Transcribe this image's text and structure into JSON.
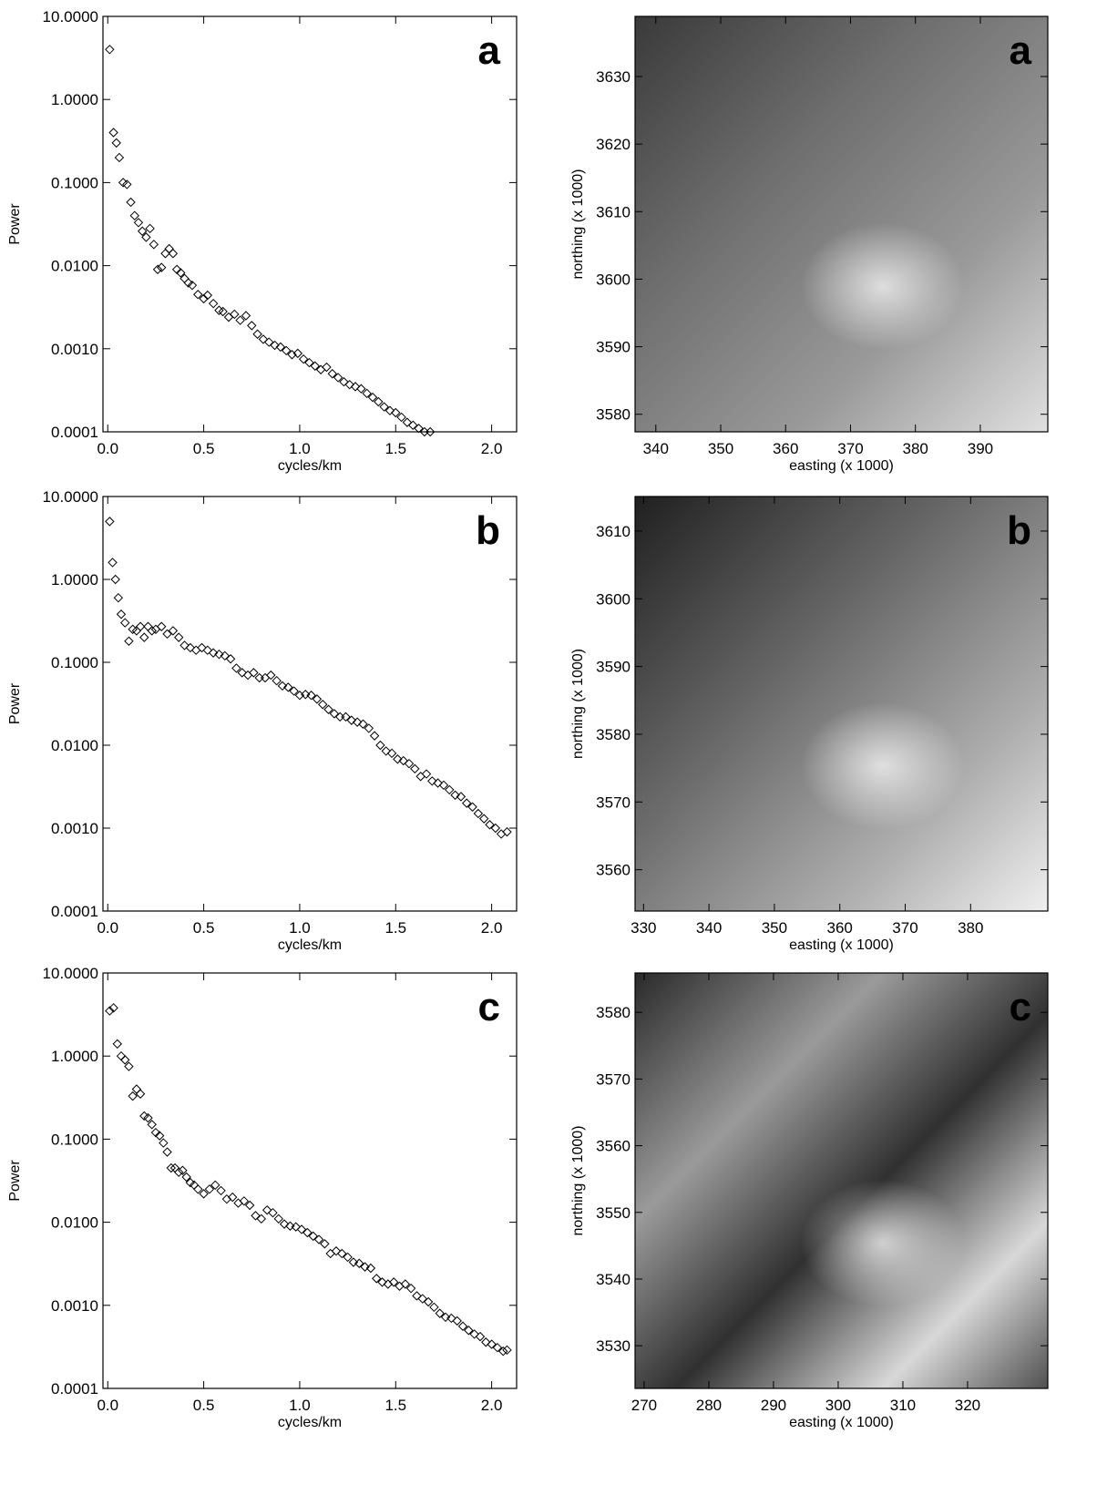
{
  "chart_data": [
    {
      "type": "scatter",
      "label": "a",
      "xlabel": "cycles/km",
      "ylabel": "Power",
      "yscale": "log",
      "color": "#000000",
      "xlim": [
        -0.025,
        2.13
      ],
      "ylim": [
        0.0001,
        10
      ],
      "xticks": [
        {
          "value": 0,
          "label": "0.0"
        },
        0.5,
        {
          "value": 1,
          "label": "1.0"
        },
        1.5,
        {
          "value": 2,
          "label": "2.0"
        }
      ],
      "yticks": [
        {
          "value": 0.0001,
          "label": "0.0001"
        },
        {
          "value": 0.001,
          "label": "0.0010"
        },
        {
          "value": 0.01,
          "label": "0.0100"
        },
        {
          "value": 0.1,
          "label": "0.1000"
        },
        {
          "value": 1,
          "label": "1.0000"
        },
        {
          "value": 10,
          "label": "10.0000"
        }
      ],
      "x": [
        0.01,
        0.03,
        0.045,
        0.06,
        0.08,
        0.1,
        0.12,
        0.14,
        0.16,
        0.18,
        0.2,
        0.22,
        0.24,
        0.26,
        0.28,
        0.3,
        0.32,
        0.34,
        0.36,
        0.38,
        0.4,
        0.42,
        0.44,
        0.47,
        0.5,
        0.52,
        0.55,
        0.58,
        0.6,
        0.63,
        0.66,
        0.69,
        0.72,
        0.75,
        0.78,
        0.81,
        0.84,
        0.87,
        0.9,
        0.93,
        0.96,
        0.99,
        1.02,
        1.05,
        1.08,
        1.11,
        1.14,
        1.17,
        1.2,
        1.23,
        1.26,
        1.29,
        1.32,
        1.35,
        1.38,
        1.41,
        1.44,
        1.47,
        1.5,
        1.53,
        1.56,
        1.59,
        1.62,
        1.65,
        1.68
      ],
      "values": [
        4.0,
        0.4,
        0.3,
        0.2,
        0.1,
        0.095,
        0.058,
        0.04,
        0.033,
        0.026,
        0.022,
        0.028,
        0.018,
        0.009,
        0.0095,
        0.014,
        0.016,
        0.014,
        0.009,
        0.0082,
        0.007,
        0.0062,
        0.0058,
        0.0045,
        0.004,
        0.0044,
        0.0035,
        0.0029,
        0.0028,
        0.0024,
        0.0026,
        0.0022,
        0.0025,
        0.0019,
        0.0015,
        0.0013,
        0.0012,
        0.0011,
        0.00105,
        0.00095,
        0.00085,
        0.00088,
        0.00075,
        0.00068,
        0.00062,
        0.00056,
        0.0006,
        0.0005,
        0.00045,
        0.0004,
        0.00037,
        0.00035,
        0.00033,
        0.00029,
        0.00026,
        0.00023,
        0.0002,
        0.00018,
        0.00017,
        0.00015,
        0.00013,
        0.00012,
        0.00011,
        0.0001,
        0.0001
      ]
    },
    {
      "type": "image",
      "label": "a",
      "xlabel": "easting (x 1000)",
      "ylabel": "northing (x 1000)",
      "xlim": [
        336.8,
        400.4
      ],
      "ylim": [
        3577.4,
        3638.9
      ],
      "xticks": [
        340,
        350,
        360,
        370,
        380,
        390
      ],
      "yticks": [
        3580,
        3590,
        3600,
        3610,
        3620,
        3630
      ]
    },
    {
      "type": "scatter",
      "label": "b",
      "xlabel": "cycles/km",
      "ylabel": "Power",
      "yscale": "log",
      "color": "#000000",
      "xlim": [
        -0.025,
        2.13
      ],
      "ylim": [
        0.0001,
        10
      ],
      "xticks": [
        {
          "value": 0,
          "label": "0.0"
        },
        0.5,
        {
          "value": 1,
          "label": "1.0"
        },
        1.5,
        {
          "value": 2,
          "label": "2.0"
        }
      ],
      "yticks": [
        {
          "value": 0.0001,
          "label": "0.0001"
        },
        {
          "value": 0.001,
          "label": "0.0010"
        },
        {
          "value": 0.01,
          "label": "0.0100"
        },
        {
          "value": 0.1,
          "label": "0.1000"
        },
        {
          "value": 1,
          "label": "1.0000"
        },
        {
          "value": 10,
          "label": "10.0000"
        }
      ],
      "x": [
        0.01,
        0.025,
        0.04,
        0.055,
        0.07,
        0.09,
        0.11,
        0.13,
        0.15,
        0.17,
        0.19,
        0.21,
        0.23,
        0.25,
        0.28,
        0.31,
        0.34,
        0.37,
        0.4,
        0.43,
        0.46,
        0.49,
        0.52,
        0.55,
        0.58,
        0.61,
        0.64,
        0.67,
        0.7,
        0.73,
        0.76,
        0.79,
        0.82,
        0.85,
        0.88,
        0.91,
        0.94,
        0.97,
        1.0,
        1.03,
        1.06,
        1.09,
        1.12,
        1.15,
        1.18,
        1.21,
        1.24,
        1.27,
        1.3,
        1.33,
        1.36,
        1.39,
        1.42,
        1.45,
        1.48,
        1.51,
        1.54,
        1.57,
        1.6,
        1.63,
        1.66,
        1.69,
        1.72,
        1.75,
        1.78,
        1.81,
        1.84,
        1.87,
        1.9,
        1.93,
        1.96,
        1.99,
        2.02,
        2.05,
        2.08
      ],
      "values": [
        5.0,
        1.6,
        1.0,
        0.6,
        0.38,
        0.3,
        0.18,
        0.25,
        0.24,
        0.27,
        0.2,
        0.27,
        0.24,
        0.25,
        0.27,
        0.22,
        0.24,
        0.2,
        0.16,
        0.15,
        0.14,
        0.15,
        0.14,
        0.13,
        0.125,
        0.12,
        0.11,
        0.085,
        0.075,
        0.07,
        0.075,
        0.065,
        0.065,
        0.07,
        0.06,
        0.052,
        0.05,
        0.045,
        0.04,
        0.041,
        0.04,
        0.036,
        0.031,
        0.027,
        0.024,
        0.022,
        0.022,
        0.02,
        0.019,
        0.018,
        0.016,
        0.013,
        0.01,
        0.0085,
        0.008,
        0.0068,
        0.0065,
        0.006,
        0.0052,
        0.0042,
        0.0045,
        0.0037,
        0.0035,
        0.0033,
        0.0029,
        0.0025,
        0.0024,
        0.002,
        0.0018,
        0.0015,
        0.0013,
        0.0011,
        0.001,
        0.00085,
        0.0009
      ]
    },
    {
      "type": "image",
      "label": "b",
      "xlabel": "easting (x 1000)",
      "ylabel": "northing (x 1000)",
      "xlim": [
        328.7,
        391.8
      ],
      "ylim": [
        3553.9,
        3615.1
      ],
      "xticks": [
        330,
        340,
        350,
        360,
        370,
        380
      ],
      "yticks": [
        3560,
        3570,
        3580,
        3590,
        3600,
        3610
      ]
    },
    {
      "type": "scatter",
      "label": "c",
      "xlabel": "cycles/km",
      "ylabel": "Power",
      "yscale": "log",
      "color": "#000000",
      "xlim": [
        -0.025,
        2.13
      ],
      "ylim": [
        0.0001,
        10
      ],
      "xticks": [
        {
          "value": 0,
          "label": "0.0"
        },
        0.5,
        {
          "value": 1,
          "label": "1.0"
        },
        1.5,
        {
          "value": 2,
          "label": "2.0"
        }
      ],
      "yticks": [
        {
          "value": 0.0001,
          "label": "0.0001"
        },
        {
          "value": 0.001,
          "label": "0.0010"
        },
        {
          "value": 0.01,
          "label": "0.0100"
        },
        {
          "value": 0.1,
          "label": "0.1000"
        },
        {
          "value": 1,
          "label": "1.0000"
        },
        {
          "value": 10,
          "label": "10.0000"
        }
      ],
      "x": [
        0.01,
        0.03,
        0.05,
        0.07,
        0.09,
        0.11,
        0.13,
        0.15,
        0.17,
        0.19,
        0.21,
        0.23,
        0.25,
        0.27,
        0.29,
        0.31,
        0.33,
        0.35,
        0.37,
        0.39,
        0.41,
        0.43,
        0.45,
        0.47,
        0.5,
        0.53,
        0.56,
        0.59,
        0.62,
        0.65,
        0.68,
        0.71,
        0.74,
        0.77,
        0.8,
        0.83,
        0.86,
        0.89,
        0.92,
        0.95,
        0.98,
        1.01,
        1.04,
        1.07,
        1.1,
        1.13,
        1.16,
        1.19,
        1.22,
        1.25,
        1.28,
        1.31,
        1.34,
        1.37,
        1.4,
        1.43,
        1.46,
        1.49,
        1.52,
        1.55,
        1.58,
        1.61,
        1.64,
        1.67,
        1.7,
        1.73,
        1.76,
        1.79,
        1.82,
        1.85,
        1.88,
        1.91,
        1.94,
        1.97,
        2.0,
        2.03,
        2.06,
        2.08
      ],
      "values": [
        3.5,
        3.8,
        1.4,
        1.0,
        0.9,
        0.75,
        0.33,
        0.4,
        0.35,
        0.19,
        0.18,
        0.15,
        0.12,
        0.11,
        0.09,
        0.07,
        0.045,
        0.045,
        0.04,
        0.042,
        0.035,
        0.03,
        0.028,
        0.025,
        0.022,
        0.025,
        0.028,
        0.024,
        0.019,
        0.02,
        0.017,
        0.018,
        0.016,
        0.012,
        0.011,
        0.014,
        0.013,
        0.011,
        0.0095,
        0.009,
        0.0088,
        0.0082,
        0.0075,
        0.0068,
        0.0062,
        0.0055,
        0.0042,
        0.0045,
        0.0042,
        0.0038,
        0.0033,
        0.0032,
        0.0029,
        0.0028,
        0.0021,
        0.0019,
        0.0018,
        0.0019,
        0.0017,
        0.0018,
        0.0016,
        0.0013,
        0.0012,
        0.0011,
        0.00095,
        0.0008,
        0.00072,
        0.0007,
        0.00065,
        0.00056,
        0.0005,
        0.00045,
        0.00042,
        0.00036,
        0.00034,
        0.00031,
        0.00028,
        0.00029
      ]
    },
    {
      "type": "image",
      "label": "c",
      "xlabel": "easting (x 1000)",
      "ylabel": "northing (x 1000)",
      "xlim": [
        268.6,
        332.4
      ],
      "ylim": [
        3523.6,
        3585.9
      ],
      "xticks": [
        270,
        280,
        290,
        300,
        310,
        320
      ],
      "yticks": [
        3530,
        3540,
        3550,
        3560,
        3570,
        3580
      ]
    }
  ]
}
